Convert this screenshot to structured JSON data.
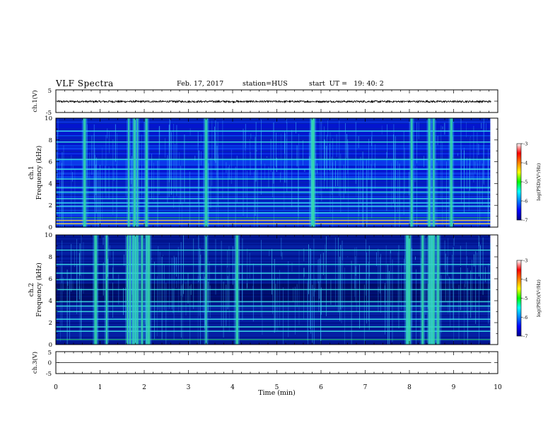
{
  "header": {
    "title": "VLF Spectra",
    "date": "Feb. 17, 2017",
    "station": "station=HUS",
    "start": "start  UT =   19: 40: 2"
  },
  "chart_data": [
    {
      "type": "line",
      "panel": "waveform-ch1",
      "ylabel": "ch.1(V)",
      "ylim": [
        -5,
        5
      ],
      "ytick_labels": [
        "5",
        "-5"
      ],
      "xlim": [
        0,
        10
      ],
      "baseline": 0,
      "trace_amplitude": 0.4
    },
    {
      "type": "heatmap",
      "panel": "spectrogram-ch1",
      "ylabel_top": "ch.1",
      "ylabel": "Frequency  (kHz)",
      "ylim": [
        0,
        10
      ],
      "ytick_labels": [
        "0",
        "2",
        "4",
        "6",
        "8",
        "10"
      ],
      "xlim": [
        0,
        10
      ],
      "data_xmax": 9.83,
      "bursts_min": [
        0.65,
        1.65,
        1.78,
        1.85,
        2.05,
        3.4,
        5.8,
        5.83,
        8.05,
        8.45,
        8.55,
        8.95
      ],
      "bands_khz": [
        0.3,
        0.6,
        1.3,
        1.9,
        2.2,
        2.6,
        3.2,
        3.6,
        4.4,
        5.3,
        6.2,
        7.8,
        8.8
      ]
    },
    {
      "type": "heatmap",
      "panel": "spectrogram-ch2",
      "ylabel_top": "ch.2",
      "ylabel": "Frequency  (kHz)",
      "ylim": [
        0,
        10
      ],
      "ytick_labels": [
        "0",
        "2",
        "4",
        "6",
        "8",
        "10"
      ],
      "xlim": [
        0,
        10
      ],
      "data_xmax": 9.83,
      "bursts_min": [
        0.9,
        1.15,
        1.62,
        1.68,
        1.75,
        1.8,
        1.85,
        1.95,
        2.05,
        2.1,
        3.4,
        4.1,
        7.95,
        8.0,
        8.3,
        8.45,
        8.5,
        8.55,
        8.65
      ],
      "bands_khz": [
        1.2,
        1.6,
        2.3,
        3.0,
        3.5,
        3.9,
        5.0,
        5.9,
        6.5,
        7.3,
        8.6
      ]
    },
    {
      "type": "line",
      "panel": "waveform-ch3",
      "ylabel": "ch.3(V)",
      "ylim": [
        -5,
        5
      ],
      "ytick_labels": [
        "5",
        "0",
        "-5"
      ],
      "xlim": [
        0,
        10
      ],
      "baseline": 0,
      "trace_amplitude": 0
    }
  ],
  "xaxis": {
    "label": "Time  (min)",
    "tick_labels": [
      "0",
      "1",
      "2",
      "3",
      "4",
      "5",
      "6",
      "7",
      "8",
      "9",
      "10"
    ]
  },
  "colorbar": {
    "label": "log(PSD)(V²/Hz)",
    "range": [
      -7,
      -3
    ],
    "tick_labels": [
      "-3",
      "-4",
      "-5",
      "-6",
      "-7"
    ],
    "colors": [
      "#00008c",
      "#0000ff",
      "#0080ff",
      "#00ffff",
      "#00ff00",
      "#ffff00",
      "#ff8000",
      "#ff0000",
      "#ffffff"
    ]
  }
}
